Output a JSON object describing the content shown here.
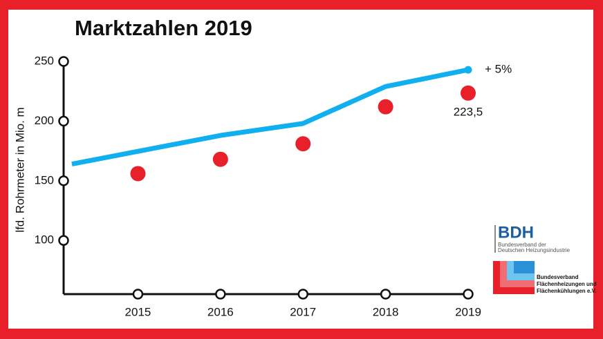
{
  "chart_data": {
    "type": "line_scatter",
    "title": "Marktzahlen 2019",
    "y_axis_label": "lfd. Rohrmeter in Mio. m",
    "annotation": "+ 5%",
    "xlim": [
      2014.1,
      2019
    ],
    "xticks": [
      2015,
      2016,
      2017,
      2018,
      2019
    ],
    "ylim": [
      55,
      250
    ],
    "yticks": [
      100,
      150,
      200,
      250
    ],
    "series": [
      {
        "type": "line",
        "color": "#10b0f0",
        "x": [
          2014.2,
          2016,
          2017,
          2018,
          2019
        ],
        "values": [
          164,
          188,
          198,
          229,
          243
        ]
      },
      {
        "type": "scatter",
        "color": "#e8202a",
        "x": [
          2015,
          2016,
          2017,
          2018,
          2019
        ],
        "values": [
          156,
          168,
          181,
          212,
          223.5
        ],
        "value_labels": [
          null,
          null,
          null,
          null,
          "223,5"
        ]
      }
    ]
  },
  "logos": {
    "bdh": {
      "name": "BDH",
      "line1": "Bundesverband der",
      "line2": "Deutschen Heizungsindustrie"
    },
    "bvf": {
      "line1": "Bundesverband",
      "line2": "Flächenheizungen und",
      "line3": "Flächenkühlungen e.V."
    }
  }
}
